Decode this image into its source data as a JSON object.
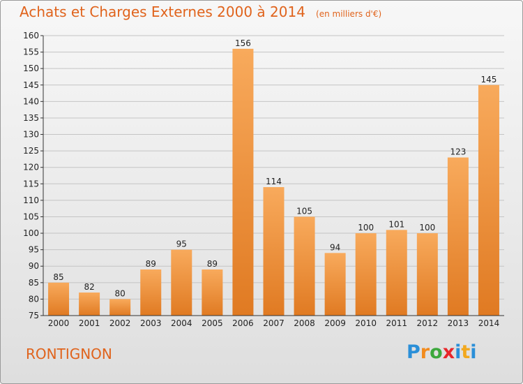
{
  "title": "Achats et Charges Externes 2000 à 2014",
  "subtitle": "(en milliers d'€)",
  "commune": "RONTIGNON",
  "logo": {
    "letters": [
      "P",
      "r",
      "o",
      "x",
      "i",
      "t",
      "i"
    ],
    "colors": [
      "#2a8fd8",
      "#f28b1e",
      "#3da83d",
      "#e8262a",
      "#2a8fd8",
      "#f2a81e",
      "#2a8fd8"
    ]
  },
  "colors": {
    "bar_light": "#f8aa5c",
    "bar_dark": "#e07a22",
    "grid": "#c4c4c4",
    "title": "#e0631c"
  },
  "chart_data": {
    "type": "bar",
    "categories": [
      "2000",
      "2001",
      "2002",
      "2003",
      "2004",
      "2005",
      "2006",
      "2007",
      "2008",
      "2009",
      "2010",
      "2011",
      "2012",
      "2013",
      "2014"
    ],
    "values": [
      85,
      82,
      80,
      89,
      95,
      89,
      156,
      114,
      105,
      94,
      100,
      101,
      100,
      123,
      145
    ],
    "title": "Achats et Charges Externes 2000 à 2014",
    "ylim": [
      75,
      160
    ],
    "yticks": [
      75,
      80,
      85,
      90,
      95,
      100,
      105,
      110,
      115,
      120,
      125,
      130,
      135,
      140,
      145,
      150,
      155,
      160
    ],
    "grid": true
  }
}
